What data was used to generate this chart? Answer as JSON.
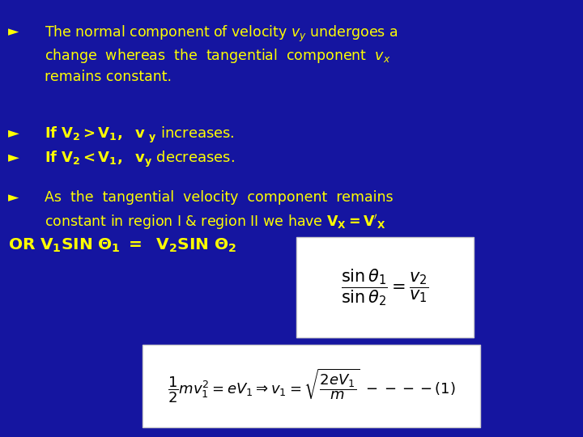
{
  "bg_color": "#1515a0",
  "text_color": "#ffff00",
  "fig_width": 7.2,
  "fig_height": 5.4,
  "dpi": 100,
  "bullet": "►",
  "fs_main": 12.5,
  "fs_bold": 13.0
}
